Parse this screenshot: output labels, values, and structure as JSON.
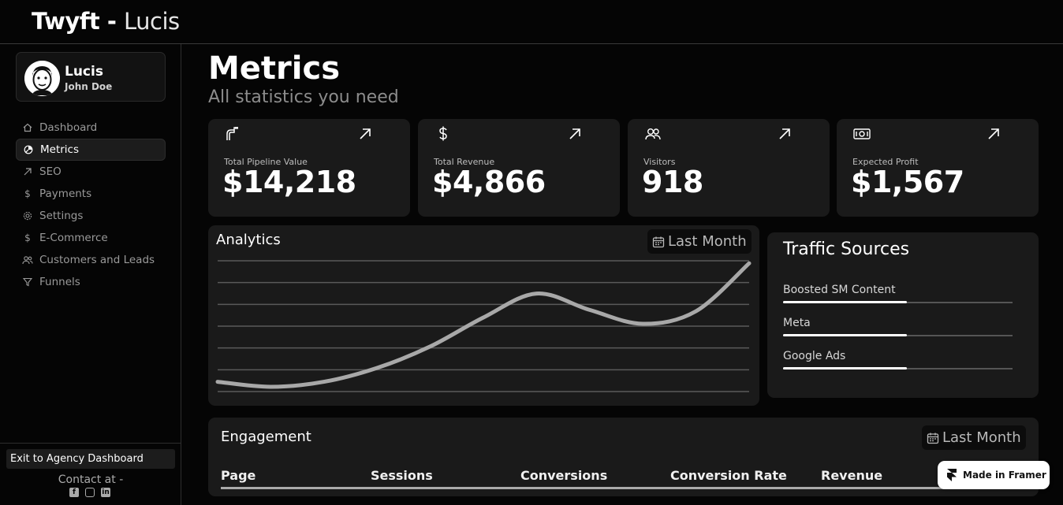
{
  "brand": {
    "name": "Twyft -",
    "sub": "Lucis"
  },
  "profile": {
    "name": "Lucis",
    "user": "John Doe"
  },
  "nav": [
    {
      "label": "Dashboard",
      "icon": "home-icon"
    },
    {
      "label": "Metrics",
      "icon": "chart-pie-icon",
      "active": true
    },
    {
      "label": "SEO",
      "icon": "arrow-up-right-icon"
    },
    {
      "label": "Payments",
      "icon": "dollar-icon"
    },
    {
      "label": "Settings",
      "icon": "gear-icon"
    },
    {
      "label": "E-Commerce",
      "icon": "dollar-icon"
    },
    {
      "label": "Customers and Leads",
      "icon": "users-icon"
    },
    {
      "label": "Funnels",
      "icon": "funnel-icon"
    }
  ],
  "footer": {
    "exit_label": "Exit to Agency Dashboard",
    "contact_label": "Contact at -",
    "socials": [
      "facebook-icon",
      "instagram-icon",
      "linkedin-icon"
    ]
  },
  "header": {
    "title": "Metrics",
    "subtitle": "All statistics you need"
  },
  "cards": [
    {
      "label": "Total Pipeline Value",
      "value": "$14,218",
      "icon": "pipeline-icon"
    },
    {
      "label": "Total Revenue",
      "value": "$4,866",
      "icon": "dollar-icon"
    },
    {
      "label": "Visitors",
      "value": "918",
      "icon": "users-icon"
    },
    {
      "label": "Expected Profit",
      "value": "$1,567",
      "icon": "banknote-icon"
    }
  ],
  "analytics": {
    "title": "Analytics",
    "range_label": "Last Month",
    "curve": [
      0.04,
      0.0,
      0.04,
      0.15,
      0.32,
      0.55,
      0.74,
      0.61,
      0.5,
      0.6,
      0.98
    ],
    "gridlines": 7
  },
  "traffic": {
    "title": "Traffic Sources",
    "sources": [
      {
        "label": "Boosted SM Content",
        "share": 0.54
      },
      {
        "label": "Meta",
        "share": 0.54
      },
      {
        "label": "Google Ads",
        "share": 0.54
      }
    ]
  },
  "engagement": {
    "title": "Engagement",
    "range_label": "Last Month",
    "columns": [
      "Page",
      "Sessions",
      "Conversions",
      "Conversion Rate",
      "Revenue"
    ]
  },
  "badge": {
    "label": "Made in Framer"
  },
  "colors": {
    "background": "#050505",
    "panel": "#1a1a1a",
    "accent": "#ffffff",
    "muted": "#9a9a9a",
    "line": "#a8a8a8"
  }
}
